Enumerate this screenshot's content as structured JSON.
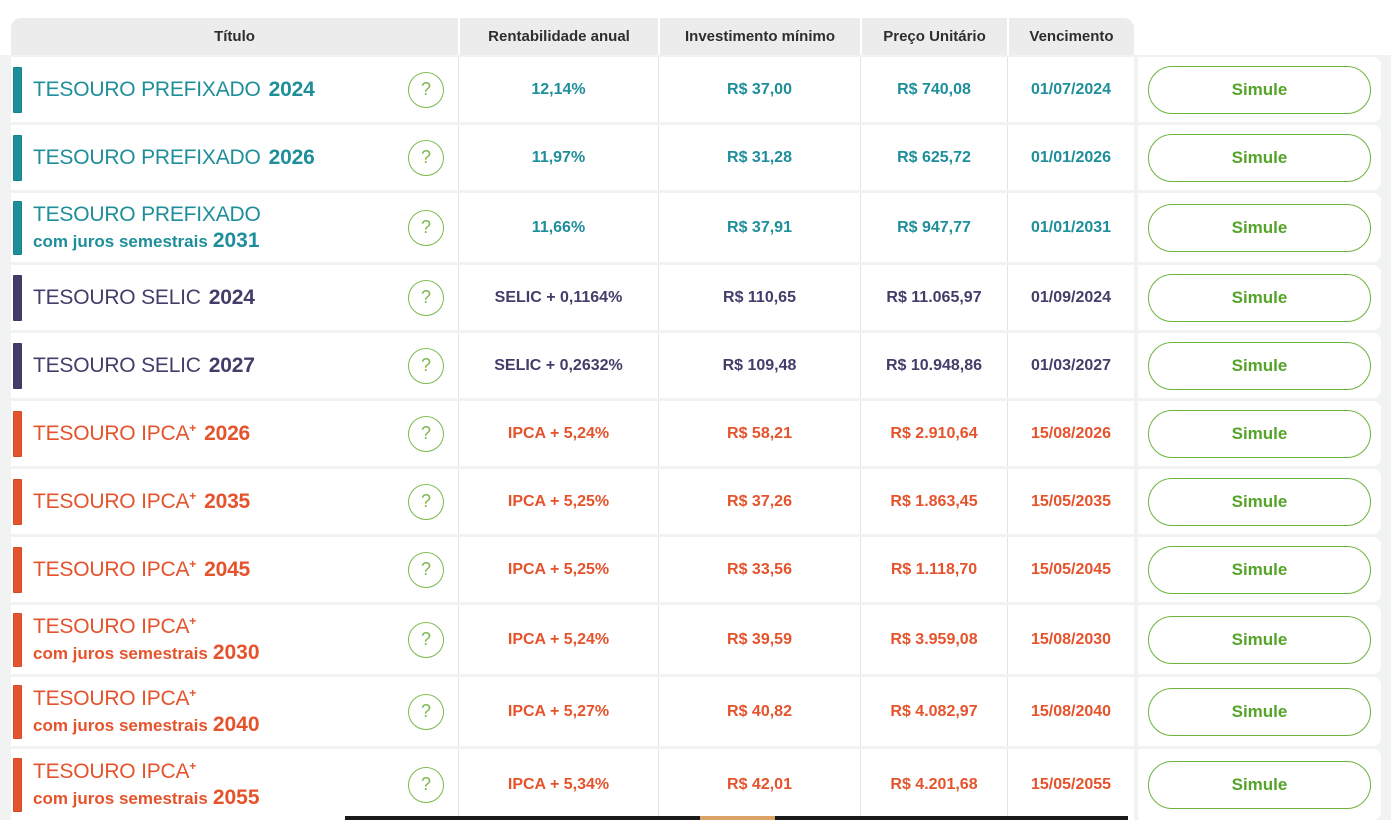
{
  "colors": {
    "prefixado": "#1e8e9a",
    "selic": "#443d6a",
    "ipca": "#e5532c",
    "action-green": "#55a329",
    "action-border": "#6db33f",
    "help-green": "#7cb94e",
    "header-text": "#2e2e2e",
    "header-bg": "#ececec",
    "backdrop": "#f1f2f2",
    "separator": "#e4e4e4",
    "bottom-bar": "#191919",
    "bottom-accent": "#d9a466"
  },
  "table": {
    "headers": {
      "titulo": "Título",
      "rentabilidade": "Rentabilidade anual",
      "investimento": "Investimento mínimo",
      "preco": "Preço Unitário",
      "vencimento": "Vencimento"
    },
    "help_icon": "?",
    "action_label": "Simule",
    "rows": [
      {
        "group": "prefixado",
        "name": "TESOURO PREFIXADO",
        "sup": "",
        "subtitle": "",
        "year": "2024",
        "rate": "12,14%",
        "min_investment": "R$ 37,00",
        "unit_price": "R$ 740,08",
        "maturity": "01/07/2024"
      },
      {
        "group": "prefixado",
        "name": "TESOURO PREFIXADO",
        "sup": "",
        "subtitle": "",
        "year": "2026",
        "rate": "11,97%",
        "min_investment": "R$ 31,28",
        "unit_price": "R$ 625,72",
        "maturity": "01/01/2026"
      },
      {
        "group": "prefixado",
        "name": "TESOURO PREFIXADO",
        "sup": "",
        "subtitle": "com juros semestrais",
        "year": "2031",
        "rate": "11,66%",
        "min_investment": "R$ 37,91",
        "unit_price": "R$ 947,77",
        "maturity": "01/01/2031"
      },
      {
        "group": "selic",
        "name": "TESOURO SELIC",
        "sup": "",
        "subtitle": "",
        "year": "2024",
        "rate": "SELIC + 0,1164%",
        "min_investment": "R$ 110,65",
        "unit_price": "R$ 11.065,97",
        "maturity": "01/09/2024"
      },
      {
        "group": "selic",
        "name": "TESOURO SELIC",
        "sup": "",
        "subtitle": "",
        "year": "2027",
        "rate": "SELIC + 0,2632%",
        "min_investment": "R$ 109,48",
        "unit_price": "R$ 10.948,86",
        "maturity": "01/03/2027"
      },
      {
        "group": "ipca",
        "name": "TESOURO IPCA",
        "sup": "+",
        "subtitle": "",
        "year": "2026",
        "rate": "IPCA + 5,24%",
        "min_investment": "R$ 58,21",
        "unit_price": "R$ 2.910,64",
        "maturity": "15/08/2026"
      },
      {
        "group": "ipca",
        "name": "TESOURO IPCA",
        "sup": "+",
        "subtitle": "",
        "year": "2035",
        "rate": "IPCA + 5,25%",
        "min_investment": "R$ 37,26",
        "unit_price": "R$ 1.863,45",
        "maturity": "15/05/2035"
      },
      {
        "group": "ipca",
        "name": "TESOURO IPCA",
        "sup": "+",
        "subtitle": "",
        "year": "2045",
        "rate": "IPCA + 5,25%",
        "min_investment": "R$ 33,56",
        "unit_price": "R$ 1.118,70",
        "maturity": "15/05/2045"
      },
      {
        "group": "ipca",
        "name": "TESOURO IPCA",
        "sup": "+",
        "subtitle": "com juros semestrais",
        "year": "2030",
        "rate": "IPCA + 5,24%",
        "min_investment": "R$ 39,59",
        "unit_price": "R$ 3.959,08",
        "maturity": "15/08/2030"
      },
      {
        "group": "ipca",
        "name": "TESOURO IPCA",
        "sup": "+",
        "subtitle": "com juros semestrais",
        "year": "2040",
        "rate": "IPCA + 5,27%",
        "min_investment": "R$ 40,82",
        "unit_price": "R$ 4.082,97",
        "maturity": "15/08/2040"
      },
      {
        "group": "ipca",
        "name": "TESOURO IPCA",
        "sup": "+",
        "subtitle": "com juros semestrais",
        "year": "2055",
        "rate": "IPCA + 5,34%",
        "min_investment": "R$ 42,01",
        "unit_price": "R$ 4.201,68",
        "maturity": "15/05/2055"
      }
    ]
  }
}
